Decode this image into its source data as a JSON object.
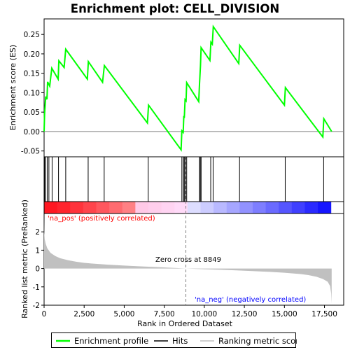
{
  "chart_data": {
    "type": "line",
    "title": "Enrichment plot: CELL_DIVISION",
    "xlabel": "Rank in Ordered Dataset",
    "ylabel_top": "Enrichment score (ES)",
    "ylabel_bottom": "Ranked list metric (PreRanked)",
    "x_ticks": [
      0,
      2500,
      5000,
      7500,
      10000,
      12500,
      15000,
      17500
    ],
    "x_tick_labels": [
      "0",
      "2,500",
      "5,000",
      "7,500",
      "10,000",
      "12,500",
      "15,000",
      "17,500"
    ],
    "es_ticks": [
      -0.05,
      0.0,
      0.05,
      0.1,
      0.15,
      0.2,
      0.25
    ],
    "es_tick_labels": [
      "-0.05",
      "0.00",
      "0.05",
      "0.10",
      "0.15",
      "0.20",
      "0.25"
    ],
    "es_ylim": [
      -0.065,
      0.29
    ],
    "metric_ticks": [
      -2,
      -1,
      0,
      1,
      2
    ],
    "metric_tick_labels": [
      "-2",
      "-1",
      "0",
      "1",
      "2"
    ],
    "metric_ylim": [
      -2.0,
      3.0
    ],
    "xlim": [
      0,
      18700
    ],
    "n_genes": 17900,
    "zero_cross": 8849,
    "zero_cross_label": "Zero cross at 8849",
    "pos_label": "'na_pos' (positively correlated)",
    "neg_label": "'na_neg' (negatively correlated)",
    "hits": [
      30,
      100,
      200,
      300,
      500,
      900,
      1350,
      2750,
      3750,
      6500,
      8600,
      8700,
      8750,
      8800,
      8900,
      9700,
      9750,
      9800,
      10400,
      10550,
      12200,
      15050,
      17450
    ],
    "es_points": [
      [
        0,
        0.0
      ],
      [
        30,
        0.045
      ],
      [
        100,
        0.09
      ],
      [
        180,
        0.083
      ],
      [
        220,
        0.128
      ],
      [
        350,
        0.117
      ],
      [
        480,
        0.163
      ],
      [
        880,
        0.135
      ],
      [
        920,
        0.182
      ],
      [
        1250,
        0.165
      ],
      [
        1350,
        0.212
      ],
      [
        2700,
        0.135
      ],
      [
        2760,
        0.18
      ],
      [
        3650,
        0.127
      ],
      [
        3760,
        0.17
      ],
      [
        6450,
        0.022
      ],
      [
        6520,
        0.068
      ],
      [
        8550,
        -0.047
      ],
      [
        8600,
        0.002
      ],
      [
        8680,
        -0.002
      ],
      [
        8720,
        0.04
      ],
      [
        8750,
        0.035
      ],
      [
        8800,
        0.082
      ],
      [
        8860,
        0.079
      ],
      [
        8900,
        0.126
      ],
      [
        9650,
        0.077
      ],
      [
        9700,
        0.122
      ],
      [
        9760,
        0.17
      ],
      [
        9800,
        0.216
      ],
      [
        10350,
        0.183
      ],
      [
        10410,
        0.23
      ],
      [
        10500,
        0.225
      ],
      [
        10560,
        0.27
      ],
      [
        12150,
        0.175
      ],
      [
        12210,
        0.222
      ],
      [
        15000,
        0.068
      ],
      [
        15060,
        0.113
      ],
      [
        17400,
        -0.014
      ],
      [
        17460,
        0.033
      ],
      [
        17950,
        0.0
      ]
    ],
    "metric_curve": [
      [
        0,
        2.75
      ],
      [
        10,
        2.0
      ],
      [
        40,
        1.6
      ],
      [
        100,
        1.35
      ],
      [
        200,
        1.1
      ],
      [
        400,
        0.85
      ],
      [
        700,
        0.68
      ],
      [
        1000,
        0.56
      ],
      [
        1500,
        0.45
      ],
      [
        2000,
        0.37
      ],
      [
        2500,
        0.31
      ],
      [
        3000,
        0.27
      ],
      [
        4000,
        0.21
      ],
      [
        5000,
        0.16
      ],
      [
        6000,
        0.12
      ],
      [
        7000,
        0.08
      ],
      [
        8000,
        0.04
      ],
      [
        8849,
        0.0
      ],
      [
        10000,
        -0.04
      ],
      [
        11000,
        -0.07
      ],
      [
        12000,
        -0.1
      ],
      [
        13000,
        -0.14
      ],
      [
        14000,
        -0.18
      ],
      [
        15000,
        -0.23
      ],
      [
        16000,
        -0.3
      ],
      [
        16500,
        -0.36
      ],
      [
        17000,
        -0.45
      ],
      [
        17400,
        -0.57
      ],
      [
        17700,
        -0.72
      ],
      [
        17850,
        -0.95
      ],
      [
        17920,
        -1.35
      ],
      [
        17950,
        -1.9
      ]
    ],
    "colors": {
      "es_line": "#00ff00",
      "hit_line": "#000000",
      "metric_fill": "#c0c0c0",
      "zero_line": "#808080",
      "pos_text": "#ff0000",
      "neg_text": "#0000ff"
    }
  },
  "legend": {
    "items": [
      {
        "label": "Enrichment profile",
        "color": "#00ff00"
      },
      {
        "label": "Hits",
        "color": "#000000"
      },
      {
        "label": "Ranking metric scores",
        "color": "#c0c0c0"
      }
    ]
  }
}
